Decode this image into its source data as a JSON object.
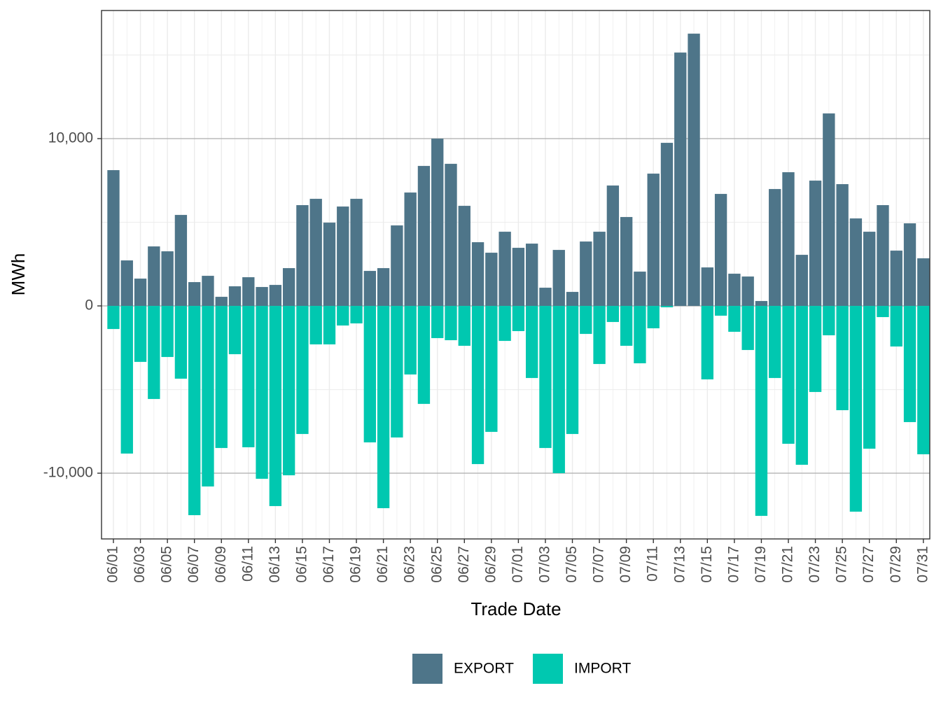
{
  "chart_data": {
    "type": "bar",
    "x_label": "Trade Date",
    "y_label": "MWh",
    "categories": [
      "06/01",
      null,
      "06/03",
      null,
      "06/05",
      null,
      "06/07",
      null,
      "06/09",
      null,
      "06/11",
      null,
      "06/13",
      null,
      "06/15",
      null,
      "06/17",
      null,
      "06/19",
      null,
      "06/21",
      null,
      "06/23",
      null,
      "06/25",
      null,
      "06/27",
      null,
      "06/29",
      null,
      "07/01",
      null,
      "07/03",
      null,
      "07/05",
      null,
      "07/07",
      null,
      "07/09",
      null,
      "07/11",
      null,
      "07/13",
      null,
      "07/15",
      null,
      "07/17",
      null,
      "07/19",
      null,
      "07/21",
      null,
      "07/23",
      null,
      "07/25",
      null,
      "07/27",
      null,
      "07/29",
      null,
      "07/31"
    ],
    "series": [
      {
        "name": "EXPORT",
        "color": "#4e7589",
        "values": [
          8117,
          2720,
          1632,
          3556,
          3264,
          5439,
          1423,
          1799,
          544,
          1172,
          1715,
          1130,
          1255,
          2259,
          6025,
          6402,
          4979,
          5941,
          6402,
          2092,
          2259,
          4812,
          6778,
          8368,
          10000,
          8494,
          5983,
          3808,
          3180,
          4435,
          3473,
          3724,
          1088,
          3347,
          837,
          3849,
          4435,
          7197,
          5314,
          2050,
          7908,
          9749,
          15146,
          16276,
          2301,
          6695,
          1925,
          1757,
          293,
          6987,
          7992,
          3054,
          7490,
          11506,
          7280,
          5230,
          4435,
          6025,
          3305,
          4937,
          2845
        ]
      },
      {
        "name": "IMPORT",
        "color": "#00c8b0",
        "values": [
          -1381,
          -8828,
          -3347,
          -5565,
          -3054,
          -4351,
          -12510,
          -10795,
          -8494,
          -2887,
          -8452,
          -10335,
          -11967,
          -10126,
          -7657,
          -2301,
          -2301,
          -1172,
          -1046,
          -8159,
          -12092,
          -7866,
          -4100,
          -5858,
          -1925,
          -2050,
          -2385,
          -9456,
          -7531,
          -2092,
          -1506,
          -4310,
          -8494,
          -10000,
          -7657,
          -1674,
          -3473,
          -962,
          -2385,
          -3431,
          -1339,
          -84,
          0,
          0,
          -4393,
          -586,
          -1548,
          -2636,
          -12552,
          -4310,
          -8243,
          -9498,
          -5146,
          -1757,
          -6234,
          -12301,
          -8536,
          -669,
          -2427,
          -6946,
          -8870
        ]
      }
    ],
    "ylim": [
      -13930,
      17660
    ],
    "yticks": [
      {
        "value": -10000,
        "label": "-10,000"
      },
      0,
      {
        "value": 10000,
        "label": "10,000"
      }
    ],
    "minor_yticks": [
      -5000,
      5000,
      15000
    ],
    "grid": true,
    "legend_position": "bottom"
  }
}
